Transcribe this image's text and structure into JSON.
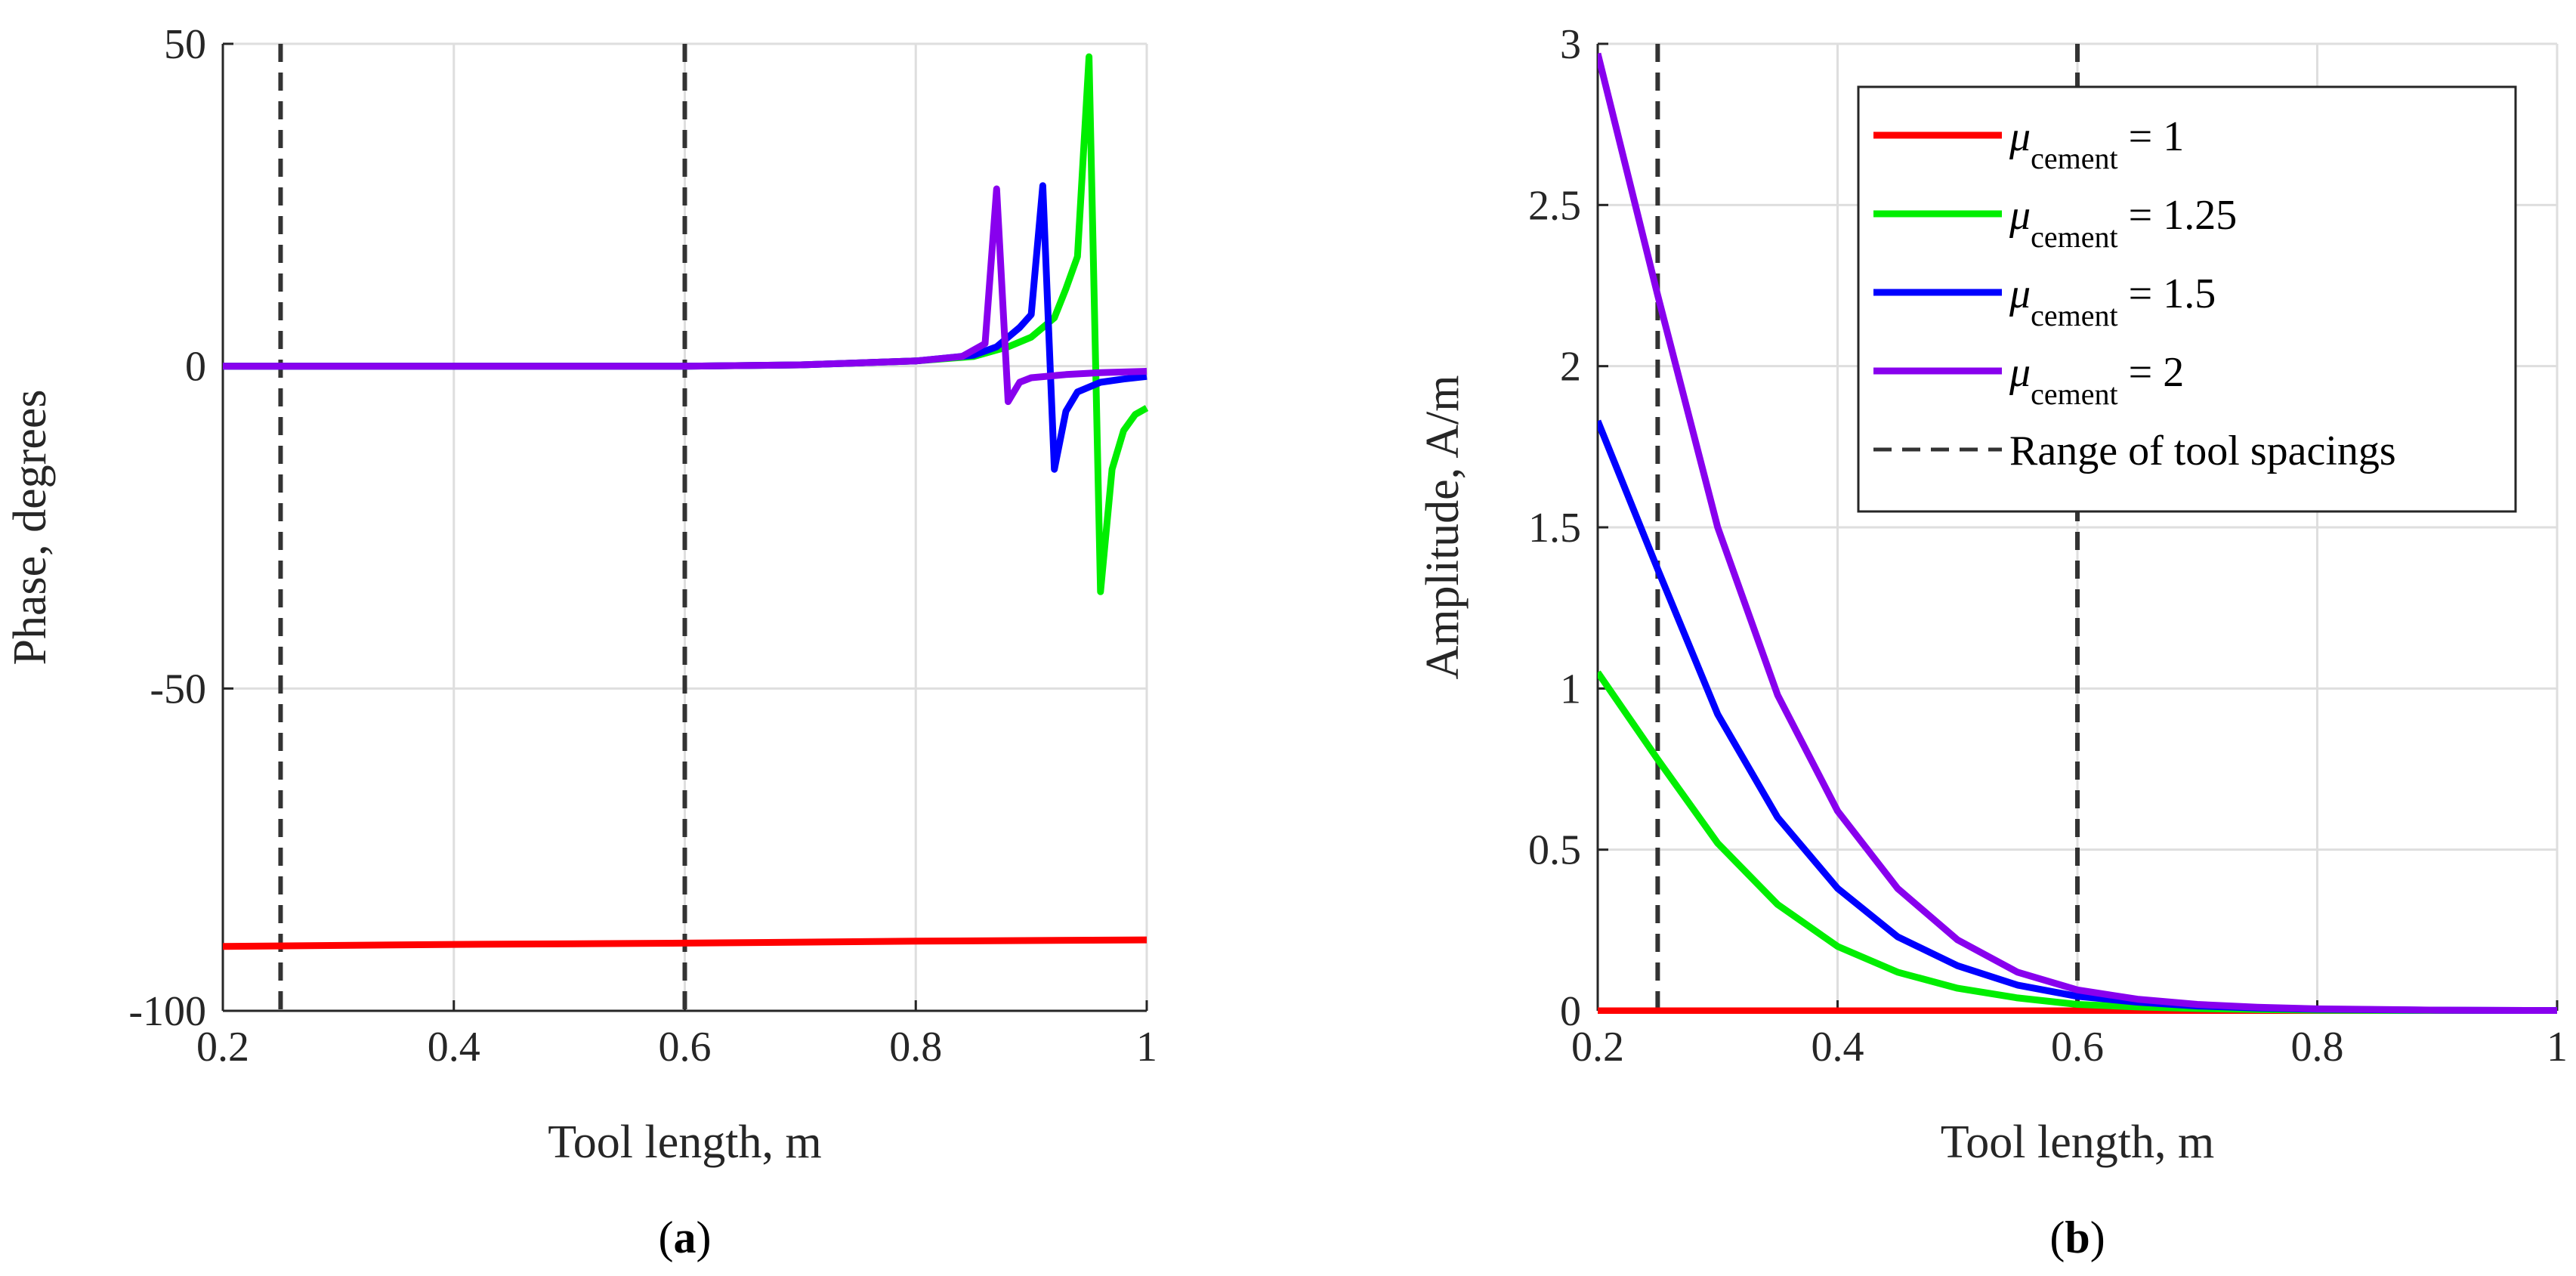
{
  "chart_data": [
    {
      "type": "line",
      "panel": "(a)",
      "panel_letter": "a",
      "title": "",
      "xlabel": "Tool length, m",
      "ylabel": "Phase, degrees",
      "xlim": [
        0.2,
        1
      ],
      "ylim": [
        -100,
        50
      ],
      "xticks": [
        0.2,
        0.4,
        0.6,
        0.8,
        1
      ],
      "xtick_labels": [
        "0.2",
        "0.4",
        "0.6",
        "0.8",
        "1"
      ],
      "yticks": [
        -100,
        -50,
        0,
        50
      ],
      "ytick_labels": [
        "-100",
        "-50",
        "0",
        "50"
      ],
      "grid": true,
      "vlines": [
        0.25,
        0.6
      ],
      "series": [
        {
          "name": "μcement = 1",
          "color": "#ff0000",
          "x": [
            0.2,
            0.4,
            0.6,
            0.8,
            1.0
          ],
          "y": [
            -90.0,
            -89.7,
            -89.5,
            -89.2,
            -89.0
          ]
        },
        {
          "name": "μcement = 1.25",
          "color": "#00ee00",
          "x": [
            0.2,
            0.4,
            0.6,
            0.7,
            0.8,
            0.85,
            0.88,
            0.9,
            0.92,
            0.93,
            0.94,
            0.95,
            0.96,
            0.97,
            0.98,
            0.99,
            1.0
          ],
          "y": [
            0.0,
            0.0,
            0.0,
            0.2,
            0.8,
            1.5,
            3.0,
            4.5,
            7.5,
            12.0,
            17.0,
            48.0,
            -35.0,
            -16.0,
            -10.0,
            -7.5,
            -6.5
          ]
        },
        {
          "name": "μcement = 1.5",
          "color": "#0000ff",
          "x": [
            0.2,
            0.4,
            0.6,
            0.7,
            0.8,
            0.85,
            0.87,
            0.89,
            0.9,
            0.91,
            0.92,
            0.93,
            0.94,
            0.96,
            0.98,
            1.0
          ],
          "y": [
            0.0,
            0.0,
            0.0,
            0.2,
            0.8,
            1.7,
            3.0,
            6.0,
            8.0,
            28.0,
            -16.0,
            -7.0,
            -4.0,
            -2.5,
            -2.0,
            -1.6
          ]
        },
        {
          "name": "μcement = 2",
          "color": "#8800ee",
          "x": [
            0.2,
            0.4,
            0.6,
            0.7,
            0.8,
            0.84,
            0.86,
            0.87,
            0.88,
            0.89,
            0.9,
            0.93,
            0.96,
            1.0
          ],
          "y": [
            0.0,
            0.0,
            0.0,
            0.2,
            0.8,
            1.5,
            3.5,
            27.5,
            -5.5,
            -2.5,
            -1.8,
            -1.3,
            -1.0,
            -0.8
          ]
        }
      ]
    },
    {
      "type": "line",
      "panel": "(b)",
      "panel_letter": "b",
      "title": "",
      "xlabel": "Tool length, m",
      "ylabel": "Amplitude, A/m",
      "xlim": [
        0.2,
        1
      ],
      "ylim": [
        0,
        3
      ],
      "xticks": [
        0.2,
        0.4,
        0.6,
        0.8,
        1
      ],
      "xtick_labels": [
        "0.2",
        "0.4",
        "0.6",
        "0.8",
        "1"
      ],
      "yticks": [
        0,
        0.5,
        1,
        1.5,
        2,
        2.5,
        3
      ],
      "ytick_labels": [
        "0",
        "0.5",
        "1",
        "1.5",
        "2",
        "2.5",
        "3"
      ],
      "grid": true,
      "vlines": [
        0.25,
        0.6
      ],
      "legend_position": "top-right",
      "series": [
        {
          "name": "μcement = 1",
          "color": "#ff0000",
          "x": [
            0.2,
            1.0
          ],
          "y": [
            0.0,
            0.0
          ]
        },
        {
          "name": "μcement = 1.25",
          "color": "#00ee00",
          "x": [
            0.2,
            0.25,
            0.3,
            0.35,
            0.4,
            0.45,
            0.5,
            0.55,
            0.6,
            0.65,
            0.7,
            0.75,
            0.8,
            0.9,
            1.0
          ],
          "y": [
            1.05,
            0.78,
            0.52,
            0.33,
            0.2,
            0.12,
            0.07,
            0.04,
            0.02,
            0.012,
            0.007,
            0.004,
            0.002,
            0.001,
            0.0
          ]
        },
        {
          "name": "μcement = 1.5",
          "color": "#0000ff",
          "x": [
            0.2,
            0.25,
            0.3,
            0.35,
            0.4,
            0.45,
            0.5,
            0.55,
            0.6,
            0.65,
            0.7,
            0.75,
            0.8,
            0.9,
            1.0
          ],
          "y": [
            1.83,
            1.37,
            0.92,
            0.6,
            0.38,
            0.23,
            0.14,
            0.08,
            0.045,
            0.027,
            0.015,
            0.009,
            0.005,
            0.002,
            0.001
          ]
        },
        {
          "name": "μcement = 2",
          "color": "#8800ee",
          "x": [
            0.2,
            0.25,
            0.3,
            0.35,
            0.4,
            0.45,
            0.5,
            0.55,
            0.6,
            0.65,
            0.7,
            0.75,
            0.8,
            0.9,
            1.0
          ],
          "y": [
            2.97,
            2.22,
            1.5,
            0.98,
            0.62,
            0.38,
            0.22,
            0.12,
            0.065,
            0.036,
            0.02,
            0.011,
            0.006,
            0.002,
            0.001
          ]
        }
      ]
    }
  ],
  "legend": {
    "entries": [
      {
        "symbol": "μ",
        "subscript": "cement",
        "suffix": " = 1",
        "color": "#ff0000",
        "style": "solid"
      },
      {
        "symbol": "μ",
        "subscript": "cement",
        "suffix": " = 1.25",
        "color": "#00ee00",
        "style": "solid"
      },
      {
        "symbol": "μ",
        "subscript": "cement",
        "suffix": " = 1.5",
        "color": "#0000ff",
        "style": "solid"
      },
      {
        "symbol": "μ",
        "subscript": "cement",
        "suffix": " = 2",
        "color": "#8800ee",
        "style": "solid"
      },
      {
        "symbol": "",
        "subscript": "",
        "suffix": "Range of tool spacings",
        "color": "#333333",
        "style": "dashed"
      }
    ]
  },
  "colors": {
    "axis": "#262626",
    "grid": "#dedede",
    "vline": "#333333",
    "background": "#ffffff"
  }
}
